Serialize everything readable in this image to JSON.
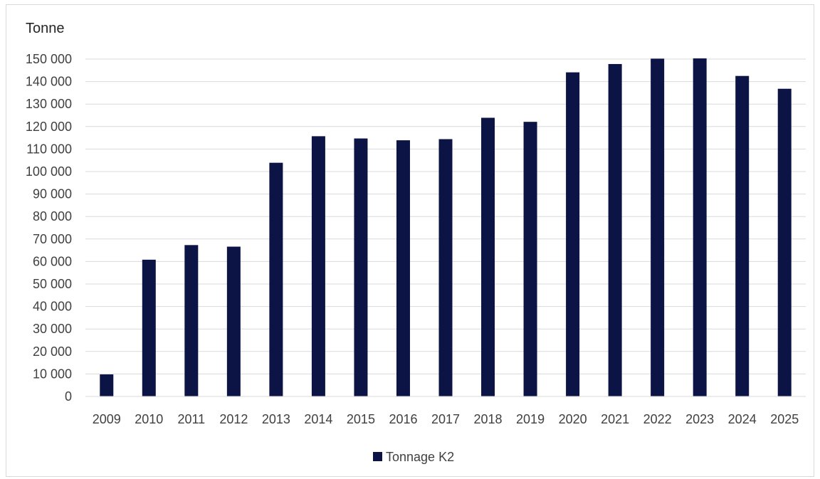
{
  "chart_data": {
    "type": "bar",
    "ylabel": "Tonne",
    "categories": [
      "2009",
      "2010",
      "2011",
      "2012",
      "2013",
      "2014",
      "2015",
      "2016",
      "2017",
      "2018",
      "2019",
      "2020",
      "2021",
      "2022",
      "2023",
      "2024",
      "2025"
    ],
    "series": [
      {
        "name": "Tonnage K2",
        "values": [
          9800,
          60800,
          67300,
          66600,
          103900,
          115700,
          114700,
          113900,
          114400,
          123900,
          122100,
          144100,
          147800,
          150200,
          150300,
          142500,
          136800
        ]
      }
    ],
    "ylim": [
      0,
      150000
    ],
    "yticks": [
      0,
      10000,
      20000,
      30000,
      40000,
      50000,
      60000,
      70000,
      80000,
      90000,
      100000,
      110000,
      120000,
      130000,
      140000,
      150000
    ],
    "ytick_labels": [
      "0",
      "10 000",
      "20 000",
      "30 000",
      "40 000",
      "50 000",
      "60 000",
      "70 000",
      "80 000",
      "90 000",
      "100 000",
      "110 000",
      "120 000",
      "130 000",
      "140 000",
      "150 000"
    ],
    "grid": true,
    "legend": "bottom-center",
    "bar_color": "#0c1445",
    "grid_color": "#d9d9d9"
  }
}
